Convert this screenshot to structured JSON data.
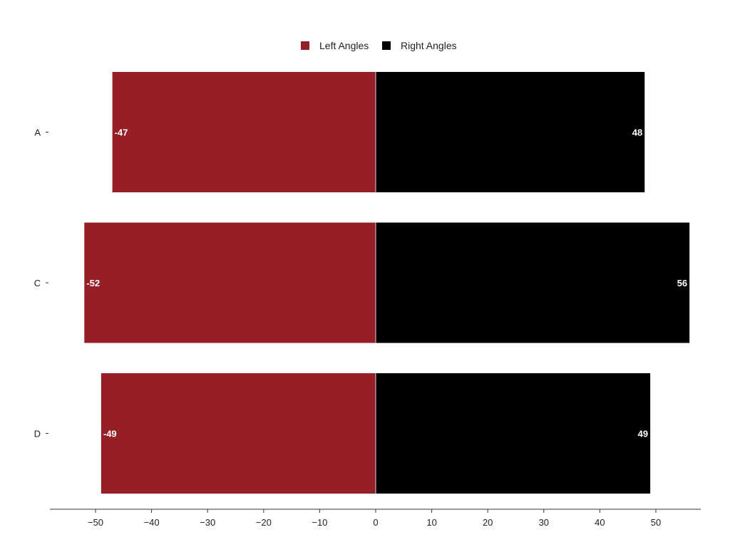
{
  "chart_data": {
    "type": "bar",
    "orientation": "horizontal",
    "stacked": "diverging",
    "categories": [
      "A",
      "C",
      "D"
    ],
    "series": [
      {
        "name": "Left Angles",
        "values": [
          -47,
          -52,
          -49
        ],
        "color": "#961e26"
      },
      {
        "name": "Right Angles",
        "values": [
          48,
          56,
          49
        ],
        "color": "#000000"
      }
    ],
    "data_labels": {
      "Left Angles": [
        "-47",
        "-52",
        "-49"
      ],
      "Right Angles": [
        "48",
        "56",
        "49"
      ]
    },
    "xlim": [
      -58,
      58
    ],
    "xticks": [
      -50,
      -40,
      -30,
      -20,
      -10,
      0,
      10,
      20,
      30,
      40,
      50
    ],
    "xtick_labels": [
      "−50",
      "−40",
      "−30",
      "−20",
      "−10",
      "0",
      "10",
      "20",
      "30",
      "40",
      "50"
    ],
    "title": "",
    "xlabel": "",
    "ylabel": "",
    "legend": {
      "position": "top-center",
      "entries": [
        "Left Angles",
        "Right Angles"
      ]
    },
    "grid": false
  }
}
